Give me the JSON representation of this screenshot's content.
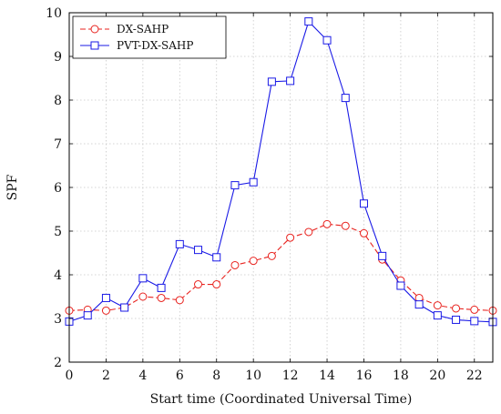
{
  "chart_data": {
    "type": "line",
    "xlabel": "Start time (Coordinated Universal Time)",
    "ylabel": "SPF",
    "xlim": [
      0,
      23
    ],
    "ylim": [
      2,
      10
    ],
    "x_ticks": [
      0,
      2,
      4,
      6,
      8,
      10,
      12,
      14,
      16,
      18,
      20,
      22
    ],
    "y_ticks": [
      2,
      3,
      4,
      5,
      6,
      7,
      8,
      9,
      10
    ],
    "grid": true,
    "legend_position": "top-left",
    "x": [
      0,
      1,
      2,
      3,
      4,
      5,
      6,
      7,
      8,
      9,
      10,
      11,
      12,
      13,
      14,
      15,
      16,
      17,
      18,
      19,
      20,
      21,
      22,
      23
    ],
    "series": [
      {
        "name": "DX-SAHP",
        "color": "#e8231f",
        "line_style": "dashed",
        "marker": "circle",
        "values": [
          3.18,
          3.2,
          3.18,
          3.25,
          3.5,
          3.47,
          3.42,
          3.78,
          3.78,
          4.22,
          4.32,
          4.43,
          4.85,
          4.98,
          5.16,
          5.12,
          4.95,
          4.35,
          3.87,
          3.47,
          3.3,
          3.23,
          3.2,
          3.18
        ]
      },
      {
        "name": "PVT-DX-SAHP",
        "color": "#1a1ae6",
        "line_style": "solid",
        "marker": "square",
        "values": [
          2.93,
          3.07,
          3.47,
          3.25,
          3.92,
          3.7,
          4.7,
          4.57,
          4.4,
          6.05,
          6.12,
          8.42,
          8.44,
          9.8,
          9.37,
          8.05,
          5.63,
          4.43,
          3.75,
          3.32,
          3.07,
          2.97,
          2.94,
          2.92
        ]
      }
    ]
  }
}
